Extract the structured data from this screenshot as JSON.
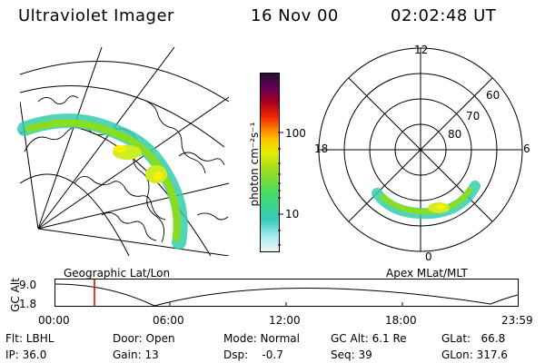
{
  "header": {
    "title": "Ultraviolet Imager",
    "date": "16 Nov 00",
    "time": "02:02:48 UT"
  },
  "colorbar": {
    "unit_label": "photon cm⁻²s⁻¹",
    "ticks": [
      "100",
      "10"
    ]
  },
  "geo_map": {
    "caption": "Geographic Lat/Lon"
  },
  "polar_plot": {
    "caption": "Apex MLat/MLT",
    "mlt_labels": {
      "top": "12",
      "bottom": "0",
      "left": "18",
      "right": "6"
    },
    "lat_labels": [
      "60",
      "70",
      "80"
    ]
  },
  "timeline": {
    "y_label": "GC Alt",
    "y_ticks": [
      "9.0",
      "1.8"
    ],
    "x_ticks": [
      "00:00",
      "06:00",
      "12:00",
      "18:00",
      "23:59"
    ],
    "marker_time": "02:02:48"
  },
  "status": {
    "flt": "Flt: LBHL",
    "ip": "IP: 36.0",
    "door": "Door: Open",
    "gain": "Gain: 13",
    "mode": "Mode: Normal",
    "dsp": "Dsp:    -0.7",
    "gc_alt": "GC Alt: 6.1 Re",
    "seq": "Seq: 39",
    "glat": "GLat:   66.8",
    "glon": "GLon: 317.6"
  },
  "colors": {
    "marker": "#cc0000",
    "aurora_core": "#ffee00",
    "aurora_mid": "#88dd22",
    "aurora_edge": "#33ccaa"
  }
}
